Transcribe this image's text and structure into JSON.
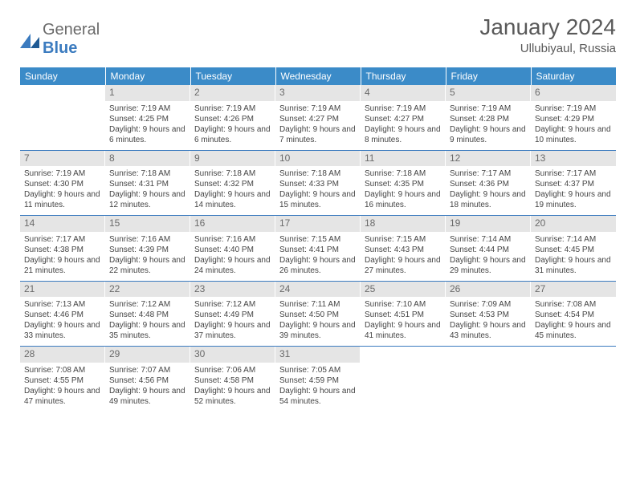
{
  "logo": {
    "general": "General",
    "blue": "Blue"
  },
  "title": "January 2024",
  "location": "Ullubiyaul, Russia",
  "colors": {
    "header_bg": "#3b8bc8",
    "header_text": "#ffffff",
    "daynum_bg": "#e5e5e5",
    "border": "#3b7bbf",
    "text": "#444444"
  },
  "weekdays": [
    "Sunday",
    "Monday",
    "Tuesday",
    "Wednesday",
    "Thursday",
    "Friday",
    "Saturday"
  ],
  "weeks": [
    [
      {
        "n": "",
        "sr": "",
        "ss": "",
        "dl": ""
      },
      {
        "n": "1",
        "sr": "Sunrise: 7:19 AM",
        "ss": "Sunset: 4:25 PM",
        "dl": "Daylight: 9 hours and 6 minutes."
      },
      {
        "n": "2",
        "sr": "Sunrise: 7:19 AM",
        "ss": "Sunset: 4:26 PM",
        "dl": "Daylight: 9 hours and 6 minutes."
      },
      {
        "n": "3",
        "sr": "Sunrise: 7:19 AM",
        "ss": "Sunset: 4:27 PM",
        "dl": "Daylight: 9 hours and 7 minutes."
      },
      {
        "n": "4",
        "sr": "Sunrise: 7:19 AM",
        "ss": "Sunset: 4:27 PM",
        "dl": "Daylight: 9 hours and 8 minutes."
      },
      {
        "n": "5",
        "sr": "Sunrise: 7:19 AM",
        "ss": "Sunset: 4:28 PM",
        "dl": "Daylight: 9 hours and 9 minutes."
      },
      {
        "n": "6",
        "sr": "Sunrise: 7:19 AM",
        "ss": "Sunset: 4:29 PM",
        "dl": "Daylight: 9 hours and 10 minutes."
      }
    ],
    [
      {
        "n": "7",
        "sr": "Sunrise: 7:19 AM",
        "ss": "Sunset: 4:30 PM",
        "dl": "Daylight: 9 hours and 11 minutes."
      },
      {
        "n": "8",
        "sr": "Sunrise: 7:18 AM",
        "ss": "Sunset: 4:31 PM",
        "dl": "Daylight: 9 hours and 12 minutes."
      },
      {
        "n": "9",
        "sr": "Sunrise: 7:18 AM",
        "ss": "Sunset: 4:32 PM",
        "dl": "Daylight: 9 hours and 14 minutes."
      },
      {
        "n": "10",
        "sr": "Sunrise: 7:18 AM",
        "ss": "Sunset: 4:33 PM",
        "dl": "Daylight: 9 hours and 15 minutes."
      },
      {
        "n": "11",
        "sr": "Sunrise: 7:18 AM",
        "ss": "Sunset: 4:35 PM",
        "dl": "Daylight: 9 hours and 16 minutes."
      },
      {
        "n": "12",
        "sr": "Sunrise: 7:17 AM",
        "ss": "Sunset: 4:36 PM",
        "dl": "Daylight: 9 hours and 18 minutes."
      },
      {
        "n": "13",
        "sr": "Sunrise: 7:17 AM",
        "ss": "Sunset: 4:37 PM",
        "dl": "Daylight: 9 hours and 19 minutes."
      }
    ],
    [
      {
        "n": "14",
        "sr": "Sunrise: 7:17 AM",
        "ss": "Sunset: 4:38 PM",
        "dl": "Daylight: 9 hours and 21 minutes."
      },
      {
        "n": "15",
        "sr": "Sunrise: 7:16 AM",
        "ss": "Sunset: 4:39 PM",
        "dl": "Daylight: 9 hours and 22 minutes."
      },
      {
        "n": "16",
        "sr": "Sunrise: 7:16 AM",
        "ss": "Sunset: 4:40 PM",
        "dl": "Daylight: 9 hours and 24 minutes."
      },
      {
        "n": "17",
        "sr": "Sunrise: 7:15 AM",
        "ss": "Sunset: 4:41 PM",
        "dl": "Daylight: 9 hours and 26 minutes."
      },
      {
        "n": "18",
        "sr": "Sunrise: 7:15 AM",
        "ss": "Sunset: 4:43 PM",
        "dl": "Daylight: 9 hours and 27 minutes."
      },
      {
        "n": "19",
        "sr": "Sunrise: 7:14 AM",
        "ss": "Sunset: 4:44 PM",
        "dl": "Daylight: 9 hours and 29 minutes."
      },
      {
        "n": "20",
        "sr": "Sunrise: 7:14 AM",
        "ss": "Sunset: 4:45 PM",
        "dl": "Daylight: 9 hours and 31 minutes."
      }
    ],
    [
      {
        "n": "21",
        "sr": "Sunrise: 7:13 AM",
        "ss": "Sunset: 4:46 PM",
        "dl": "Daylight: 9 hours and 33 minutes."
      },
      {
        "n": "22",
        "sr": "Sunrise: 7:12 AM",
        "ss": "Sunset: 4:48 PM",
        "dl": "Daylight: 9 hours and 35 minutes."
      },
      {
        "n": "23",
        "sr": "Sunrise: 7:12 AM",
        "ss": "Sunset: 4:49 PM",
        "dl": "Daylight: 9 hours and 37 minutes."
      },
      {
        "n": "24",
        "sr": "Sunrise: 7:11 AM",
        "ss": "Sunset: 4:50 PM",
        "dl": "Daylight: 9 hours and 39 minutes."
      },
      {
        "n": "25",
        "sr": "Sunrise: 7:10 AM",
        "ss": "Sunset: 4:51 PM",
        "dl": "Daylight: 9 hours and 41 minutes."
      },
      {
        "n": "26",
        "sr": "Sunrise: 7:09 AM",
        "ss": "Sunset: 4:53 PM",
        "dl": "Daylight: 9 hours and 43 minutes."
      },
      {
        "n": "27",
        "sr": "Sunrise: 7:08 AM",
        "ss": "Sunset: 4:54 PM",
        "dl": "Daylight: 9 hours and 45 minutes."
      }
    ],
    [
      {
        "n": "28",
        "sr": "Sunrise: 7:08 AM",
        "ss": "Sunset: 4:55 PM",
        "dl": "Daylight: 9 hours and 47 minutes."
      },
      {
        "n": "29",
        "sr": "Sunrise: 7:07 AM",
        "ss": "Sunset: 4:56 PM",
        "dl": "Daylight: 9 hours and 49 minutes."
      },
      {
        "n": "30",
        "sr": "Sunrise: 7:06 AM",
        "ss": "Sunset: 4:58 PM",
        "dl": "Daylight: 9 hours and 52 minutes."
      },
      {
        "n": "31",
        "sr": "Sunrise: 7:05 AM",
        "ss": "Sunset: 4:59 PM",
        "dl": "Daylight: 9 hours and 54 minutes."
      },
      {
        "n": "",
        "sr": "",
        "ss": "",
        "dl": ""
      },
      {
        "n": "",
        "sr": "",
        "ss": "",
        "dl": ""
      },
      {
        "n": "",
        "sr": "",
        "ss": "",
        "dl": ""
      }
    ]
  ]
}
